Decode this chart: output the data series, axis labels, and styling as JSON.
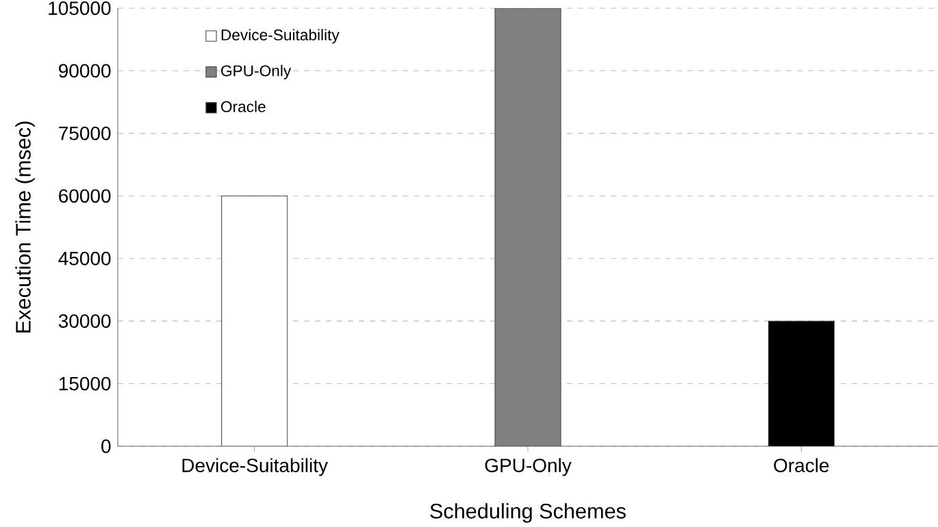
{
  "chart_data": {
    "type": "bar",
    "categories": [
      "Device-Suitability",
      "GPU-Only",
      "Oracle"
    ],
    "series": [
      {
        "name": "Device-Suitability",
        "color": "#ffffff",
        "values": [
          60000,
          null,
          null
        ]
      },
      {
        "name": "GPU-Only",
        "color": "#808080",
        "values": [
          null,
          105000,
          null
        ]
      },
      {
        "name": "Oracle",
        "color": "#000000",
        "values": [
          null,
          null,
          30000
        ]
      }
    ],
    "xlabel": "Scheduling Schemes",
    "ylabel": "Execution Time (msec)",
    "ylim": [
      0,
      105000
    ],
    "yticks": [
      0,
      15000,
      30000,
      45000,
      60000,
      75000,
      90000,
      105000
    ],
    "grid": "y",
    "legend": "top left"
  }
}
